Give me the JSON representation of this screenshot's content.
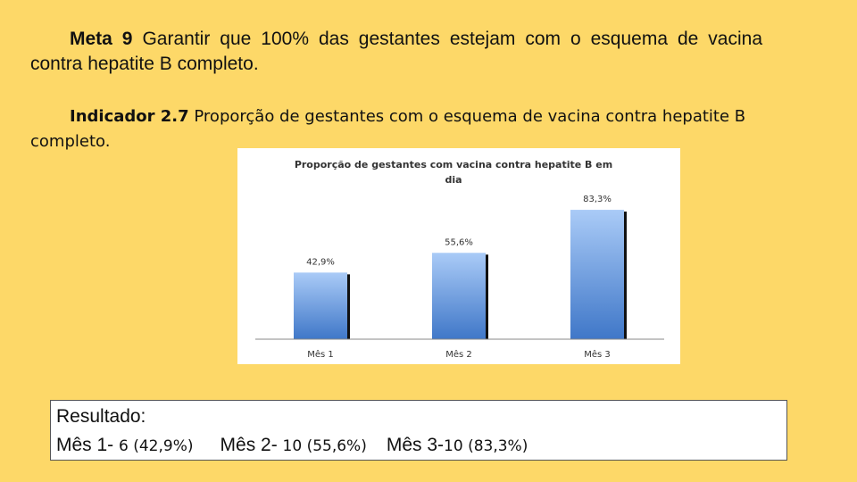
{
  "meta": {
    "label": "Meta 9",
    "text": " Garantir que 100% das gestantes estejam com o esquema de vacina contra hepatite B completo."
  },
  "indicador": {
    "label": "Indicador 2.7",
    "text": " Proporção de gestantes com o esquema de vacina contra hepatite B completo."
  },
  "chart_data": {
    "type": "bar",
    "title_line1": "Proporção de gestantes com vacina contra hepatite B em",
    "title_line2": "dia",
    "categories": [
      "Mês 1",
      "Mês 2",
      "Mês 3"
    ],
    "values": [
      42.9,
      55.6,
      83.3
    ],
    "data_labels": [
      "42,9%",
      "55,6%",
      "83,3%"
    ],
    "ylim": [
      0,
      100
    ],
    "grid": false,
    "legend": "none",
    "bar_color_top": "#aacbf7",
    "bar_color_bottom": "#3f77c8"
  },
  "result": {
    "title": "Resultado:",
    "m1_label": "Mês 1- ",
    "m1_value": "6 (42,9%)",
    "m2_label": "Mês 2- ",
    "m2_value": "10 (55,6%)",
    "m3_label": "Mês 3-",
    "m3_value": "10 (83,3%)"
  }
}
